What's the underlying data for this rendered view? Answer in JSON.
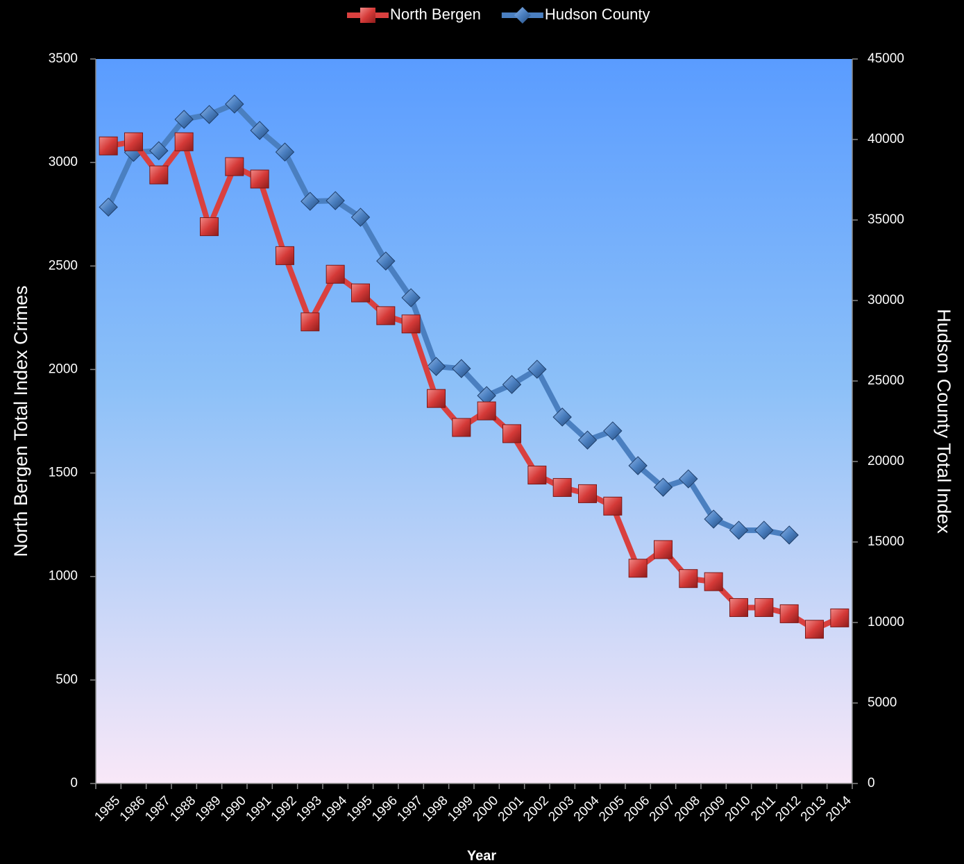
{
  "chart_data": {
    "type": "line",
    "x_label": "Year",
    "y_label": "North Bergen Total Index Crimes",
    "y2_label": "Hudson County Total Index",
    "categories": [
      "1985",
      "1986",
      "1987",
      "1988",
      "1989",
      "1990",
      "1991",
      "1992",
      "1993",
      "1994",
      "1995",
      "1996",
      "1997",
      "1998",
      "1999",
      "2000",
      "2001",
      "2002",
      "2003",
      "2004",
      "2005",
      "2006",
      "2007",
      "2008",
      "2009",
      "2010",
      "2011",
      "2012",
      "2013",
      "2014"
    ],
    "series": [
      {
        "name": "North Bergen",
        "color": "#d9403f",
        "marker": "square",
        "values": [
          3080,
          3100,
          2940,
          3100,
          2690,
          2980,
          2920,
          2550,
          2230,
          2460,
          2370,
          2260,
          2220,
          1860,
          1720,
          1800,
          1690,
          1490,
          1430,
          1400,
          1340,
          1040,
          1130,
          990,
          975,
          850,
          850,
          820,
          745,
          800
        ]
      },
      {
        "name": "Hudson County",
        "color": "#4a7fc0",
        "marker": "diamond",
        "axis": "y2",
        "values": [
          35800,
          39200,
          39300,
          41250,
          41550,
          42200,
          40560,
          39220,
          36160,
          36200,
          35170,
          32450,
          30170,
          25900,
          25770,
          24090,
          24780,
          25730,
          22760,
          21330,
          21900,
          19740,
          18400,
          18920,
          16420,
          15730,
          15730,
          15430,
          null,
          null
        ]
      }
    ],
    "ylim": [
      0,
      3500
    ],
    "yticks": [
      0,
      500,
      1000,
      1500,
      2000,
      2500,
      3000,
      3500
    ],
    "y2lim": [
      0,
      45000
    ],
    "y2ticks": [
      0,
      5000,
      10000,
      15000,
      20000,
      25000,
      30000,
      35000,
      40000,
      45000
    ],
    "legend": "top"
  }
}
